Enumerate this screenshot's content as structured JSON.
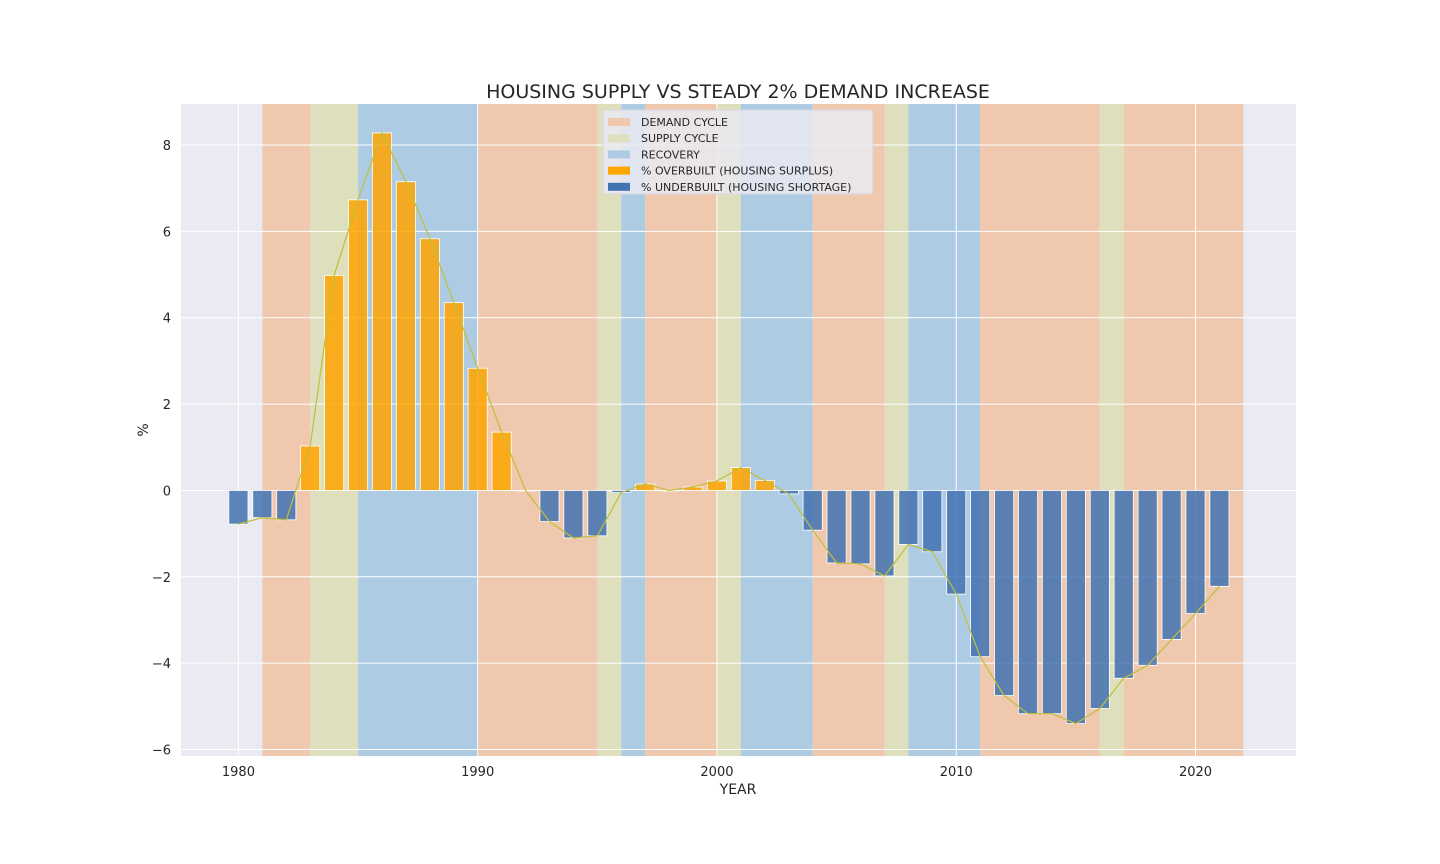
{
  "chart_data": {
    "type": "bar",
    "title": "HOUSING SUPPLY VS STEADY 2% DEMAND INCREASE",
    "xlabel": "YEAR",
    "ylabel": "%",
    "xlim": [
      1977.6,
      2024.2
    ],
    "ylim": [
      -6.15,
      8.95
    ],
    "xticks": [
      1980,
      1990,
      2000,
      2010,
      2020
    ],
    "yticks": [
      -6,
      -4,
      -2,
      0,
      2,
      4,
      6,
      8
    ],
    "grid": true,
    "legend_position": "top-center",
    "colors": {
      "plot_background": "#eaeaf2",
      "demand_cycle": "#f0c8ad",
      "supply_cycle": "#dedfbd",
      "recovery": "#aecbe4",
      "overbuilt": "#ffa500",
      "underbuilt": "#4272b2",
      "trend_line": "#bfbf3a",
      "grid": "#ffffff"
    },
    "legend": [
      {
        "label": "DEMAND CYCLE",
        "kind": "demand"
      },
      {
        "label": "SUPPLY CYCLE",
        "kind": "supply"
      },
      {
        "label": "RECOVERY",
        "kind": "recovery"
      },
      {
        "label": "% OVERBUILT (HOUSING SURPLUS)",
        "kind": "overbuilt"
      },
      {
        "label": "% UNDERBUILT (HOUSING SHORTAGE)",
        "kind": "underbuilt"
      }
    ],
    "cycles": [
      {
        "kind": "demand",
        "start": 1981,
        "end": 1983
      },
      {
        "kind": "supply",
        "start": 1983,
        "end": 1985
      },
      {
        "kind": "recovery",
        "start": 1985,
        "end": 1990
      },
      {
        "kind": "demand",
        "start": 1990,
        "end": 1995
      },
      {
        "kind": "supply",
        "start": 1995,
        "end": 1996
      },
      {
        "kind": "recovery",
        "start": 1996,
        "end": 1997
      },
      {
        "kind": "demand",
        "start": 1997,
        "end": 2000
      },
      {
        "kind": "supply",
        "start": 2000,
        "end": 2001
      },
      {
        "kind": "recovery",
        "start": 2001,
        "end": 2004
      },
      {
        "kind": "demand",
        "start": 2004,
        "end": 2007
      },
      {
        "kind": "supply",
        "start": 2007,
        "end": 2008
      },
      {
        "kind": "recovery",
        "start": 2008,
        "end": 2011
      },
      {
        "kind": "demand",
        "start": 2011,
        "end": 2016
      },
      {
        "kind": "supply",
        "start": 2016,
        "end": 2017
      },
      {
        "kind": "demand",
        "start": 2017,
        "end": 2022
      }
    ],
    "series": [
      {
        "x": [
          1980,
          1981,
          1982,
          1983,
          1984,
          1985,
          1986,
          1987,
          1988,
          1989,
          1990,
          1991,
          1992,
          1993,
          1994,
          1995,
          1996,
          1997,
          1998,
          1999,
          2000,
          2001,
          2002,
          2003,
          2004,
          2005,
          2006,
          2007,
          2008,
          2009,
          2010,
          2011,
          2012,
          2013,
          2014,
          2015,
          2016,
          2017,
          2018,
          2019,
          2020,
          2021
        ],
        "values": [
          -0.78,
          -0.63,
          -0.68,
          1.03,
          4.98,
          6.73,
          8.28,
          7.15,
          5.83,
          4.35,
          2.83,
          1.35,
          0.0,
          -0.72,
          -1.1,
          -1.05,
          -0.05,
          0.15,
          0.0,
          0.08,
          0.22,
          0.53,
          0.23,
          -0.08,
          -0.92,
          -1.68,
          -1.7,
          -1.98,
          -1.25,
          -1.42,
          -2.4,
          -3.85,
          -4.75,
          -5.17,
          -5.17,
          -5.4,
          -5.05,
          -4.35,
          -4.05,
          -3.45,
          -2.85,
          -2.22
        ]
      }
    ]
  }
}
